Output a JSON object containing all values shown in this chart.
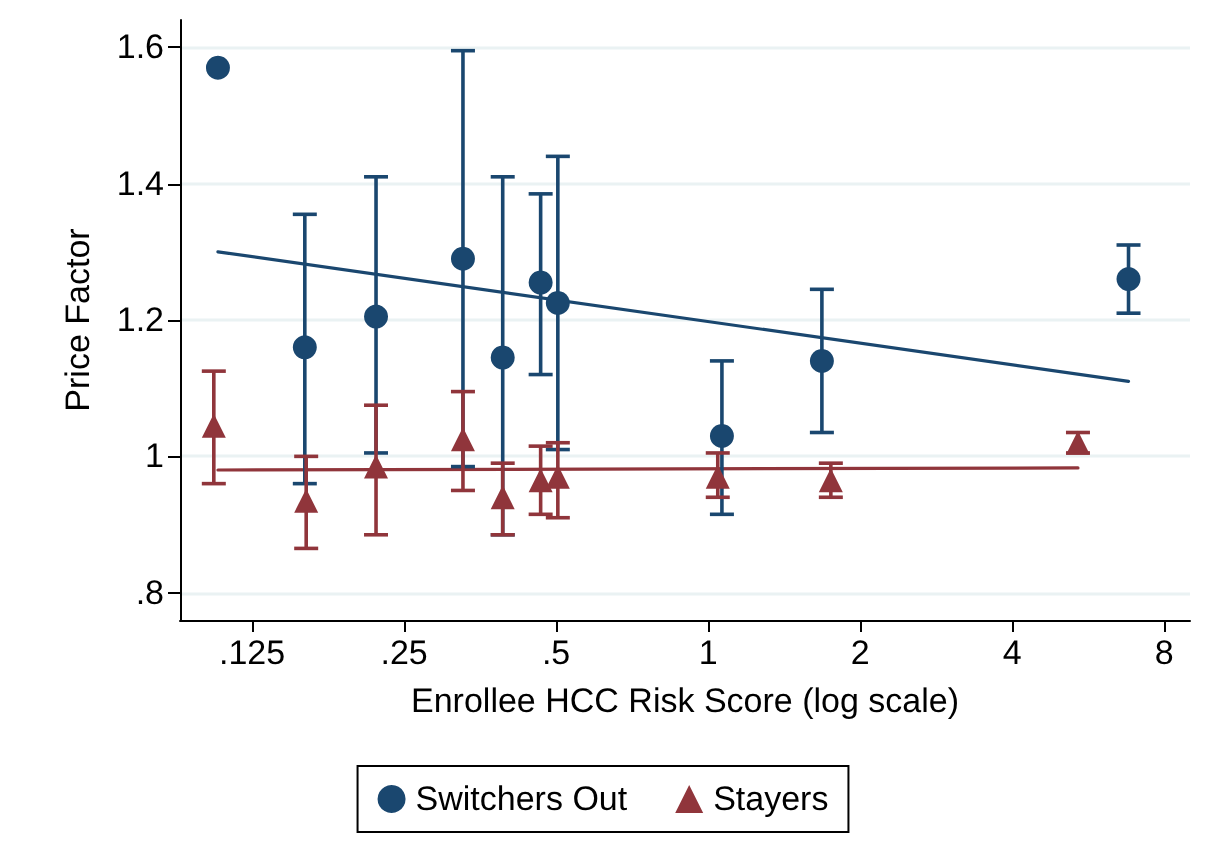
{
  "chart_data": {
    "type": "scatter",
    "xlabel": "Enrollee HCC Risk Score (log scale)",
    "ylabel": "Price Factor",
    "log": "x",
    "xlim": [
      0.09,
      9
    ],
    "ylim": [
      0.76,
      1.64
    ],
    "xticks": [
      {
        "value": 0.125,
        "label": ".125"
      },
      {
        "value": 0.25,
        "label": ".25"
      },
      {
        "value": 0.5,
        "label": ".5"
      },
      1,
      2,
      4,
      8
    ],
    "yticks": [
      {
        "value": 0.8,
        "label": ".8"
      },
      1,
      {
        "value": 1.2,
        "label": "1.2"
      },
      {
        "value": 1.4,
        "label": "1.4"
      },
      {
        "value": 1.6,
        "label": "1.6"
      }
    ],
    "grid": "y",
    "legend": "bottom",
    "series": [
      {
        "name": "Switchers Out",
        "marker": "circle",
        "color": "#1a476f",
        "x": [
          0.107,
          0.159,
          0.22,
          0.327,
          0.392,
          0.466,
          0.504,
          1.065,
          1.68,
          6.8
        ],
        "values": [
          1.57,
          1.16,
          1.205,
          1.29,
          1.145,
          1.255,
          1.225,
          1.03,
          1.14,
          1.26
        ],
        "errors": [
          null,
          [
            0.96,
            1.355
          ],
          [
            1.005,
            1.41
          ],
          [
            0.985,
            1.595
          ],
          [
            0.885,
            1.41
          ],
          [
            1.12,
            1.385
          ],
          [
            1.01,
            1.44
          ],
          [
            0.915,
            1.14
          ],
          [
            1.035,
            1.245
          ],
          [
            1.21,
            1.31
          ]
        ]
      },
      {
        "name": "Stayers",
        "marker": "triangle",
        "color": "#90353b",
        "x": [
          0.105,
          0.16,
          0.22,
          0.327,
          0.392,
          0.466,
          0.504,
          1.045,
          1.75,
          5.4
        ],
        "values": [
          1.045,
          0.935,
          0.985,
          1.025,
          0.94,
          0.965,
          0.97,
          0.97,
          0.965,
          1.02
        ],
        "errors": [
          [
            0.96,
            1.125
          ],
          [
            0.865,
            1.0
          ],
          [
            0.885,
            1.075
          ],
          [
            0.95,
            1.095
          ],
          [
            0.885,
            0.99
          ],
          [
            0.915,
            1.015
          ],
          [
            0.91,
            1.02
          ],
          [
            0.94,
            1.005
          ],
          [
            0.94,
            0.99
          ],
          [
            1.005,
            1.035
          ]
        ]
      },
      {
        "type": "line",
        "marker": "none",
        "color": "#1a476f",
        "x": [
          0.107,
          6.8
        ],
        "values": [
          1.3,
          1.11
        ]
      },
      {
        "type": "line",
        "marker": "none",
        "color": "#90353b",
        "x": [
          0.107,
          5.4
        ],
        "values": [
          0.98,
          0.983
        ]
      }
    ]
  }
}
